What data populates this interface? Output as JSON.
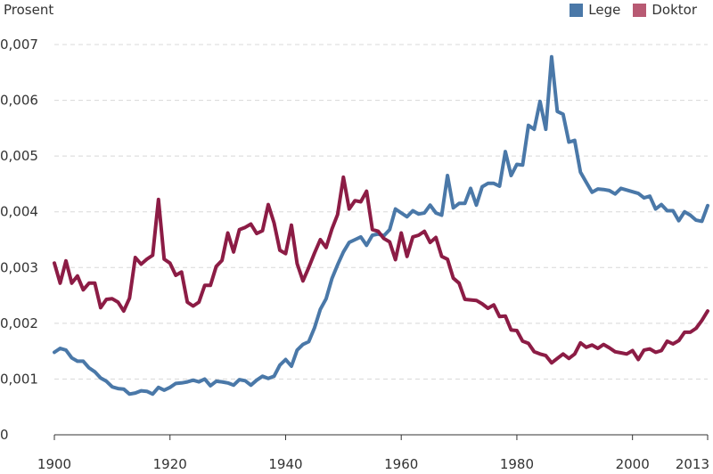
{
  "chart_data": {
    "type": "line",
    "ylabel": "Prosent",
    "xlabel": "",
    "title": "",
    "xlim": [
      1900,
      2013
    ],
    "ylim": [
      0,
      0.007
    ],
    "x_ticks": [
      1900,
      1920,
      1940,
      1960,
      1980,
      2000,
      2013
    ],
    "x_tick_labels": [
      "1900",
      "1920",
      "1940",
      "1960",
      "1980",
      "2000",
      "2013"
    ],
    "y_ticks": [
      0,
      0.001,
      0.002,
      0.003,
      0.004,
      0.005,
      0.006,
      0.007
    ],
    "y_tick_labels": [
      "0",
      "0,001",
      "0,002",
      "0,003",
      "0,004",
      "0,005",
      "0,006",
      "0,007"
    ],
    "grid": "horizontal-dashed",
    "legend_position": "top-right",
    "colors": {
      "Lege": "#4a78a8",
      "Doktor": "#8c1c45"
    },
    "series": [
      {
        "name": "Lege",
        "color": "#4a78a8",
        "points": [
          [
            1900,
            0.00148
          ],
          [
            1901,
            0.00155
          ],
          [
            1902,
            0.00152
          ],
          [
            1903,
            0.00138
          ],
          [
            1904,
            0.00132
          ],
          [
            1905,
            0.00132
          ],
          [
            1906,
            0.0012
          ],
          [
            1907,
            0.00113
          ],
          [
            1908,
            0.00102
          ],
          [
            1909,
            0.00096
          ],
          [
            1910,
            0.00086
          ],
          [
            1911,
            0.00083
          ],
          [
            1912,
            0.00082
          ],
          [
            1913,
            0.00073
          ],
          [
            1914,
            0.00075
          ],
          [
            1915,
            0.00079
          ],
          [
            1916,
            0.00078
          ],
          [
            1917,
            0.00073
          ],
          [
            1918,
            0.00085
          ],
          [
            1919,
            0.0008
          ],
          [
            1920,
            0.00085
          ],
          [
            1921,
            0.00092
          ],
          [
            1922,
            0.00093
          ],
          [
            1923,
            0.00095
          ],
          [
            1924,
            0.00098
          ],
          [
            1925,
            0.00095
          ],
          [
            1926,
            0.001
          ],
          [
            1927,
            0.00088
          ],
          [
            1928,
            0.00096
          ],
          [
            1929,
            0.00095
          ],
          [
            1930,
            0.00093
          ],
          [
            1931,
            0.00089
          ],
          [
            1932,
            0.00099
          ],
          [
            1933,
            0.00097
          ],
          [
            1934,
            0.00089
          ],
          [
            1935,
            0.00098
          ],
          [
            1936,
            0.00105
          ],
          [
            1937,
            0.00101
          ],
          [
            1938,
            0.00105
          ],
          [
            1939,
            0.00125
          ],
          [
            1940,
            0.00135
          ],
          [
            1941,
            0.00123
          ],
          [
            1942,
            0.00152
          ],
          [
            1943,
            0.00162
          ],
          [
            1944,
            0.00167
          ],
          [
            1945,
            0.00192
          ],
          [
            1946,
            0.00225
          ],
          [
            1947,
            0.00244
          ],
          [
            1948,
            0.0028
          ],
          [
            1949,
            0.00305
          ],
          [
            1950,
            0.00328
          ],
          [
            1951,
            0.00345
          ],
          [
            1952,
            0.0035
          ],
          [
            1953,
            0.00355
          ],
          [
            1954,
            0.0034
          ],
          [
            1955,
            0.00358
          ],
          [
            1956,
            0.0036
          ],
          [
            1957,
            0.00357
          ],
          [
            1958,
            0.00368
          ],
          [
            1959,
            0.00405
          ],
          [
            1960,
            0.00398
          ],
          [
            1961,
            0.00391
          ],
          [
            1962,
            0.00402
          ],
          [
            1963,
            0.00396
          ],
          [
            1964,
            0.00398
          ],
          [
            1965,
            0.00412
          ],
          [
            1966,
            0.00398
          ],
          [
            1967,
            0.00394
          ],
          [
            1968,
            0.00465
          ],
          [
            1969,
            0.00407
          ],
          [
            1970,
            0.00415
          ],
          [
            1971,
            0.00415
          ],
          [
            1972,
            0.00442
          ],
          [
            1973,
            0.00412
          ],
          [
            1974,
            0.00445
          ],
          [
            1975,
            0.00451
          ],
          [
            1976,
            0.00451
          ],
          [
            1977,
            0.00446
          ],
          [
            1978,
            0.00508
          ],
          [
            1979,
            0.00465
          ],
          [
            1980,
            0.00485
          ],
          [
            1981,
            0.00484
          ],
          [
            1982,
            0.00555
          ],
          [
            1983,
            0.00548
          ],
          [
            1984,
            0.00598
          ],
          [
            1985,
            0.00548
          ],
          [
            1986,
            0.00678
          ],
          [
            1987,
            0.0058
          ],
          [
            1988,
            0.00575
          ],
          [
            1989,
            0.00525
          ],
          [
            1990,
            0.00528
          ],
          [
            1991,
            0.00471
          ],
          [
            1992,
            0.00453
          ],
          [
            1993,
            0.00435
          ],
          [
            1994,
            0.00441
          ],
          [
            1995,
            0.0044
          ],
          [
            1996,
            0.00438
          ],
          [
            1997,
            0.00432
          ],
          [
            1998,
            0.00442
          ],
          [
            1999,
            0.00439
          ],
          [
            2000,
            0.00436
          ],
          [
            2001,
            0.00433
          ],
          [
            2002,
            0.00425
          ],
          [
            2003,
            0.00428
          ],
          [
            2004,
            0.00405
          ],
          [
            2005,
            0.00413
          ],
          [
            2006,
            0.00402
          ],
          [
            2007,
            0.00402
          ],
          [
            2008,
            0.00384
          ],
          [
            2009,
            0.004
          ],
          [
            2010,
            0.00394
          ],
          [
            2011,
            0.00385
          ],
          [
            2012,
            0.00383
          ],
          [
            2013,
            0.00411
          ]
        ]
      },
      {
        "name": "Doktor",
        "color": "#8c1c45",
        "points": [
          [
            1900,
            0.00308
          ],
          [
            1901,
            0.00272
          ],
          [
            1902,
            0.00312
          ],
          [
            1903,
            0.00272
          ],
          [
            1904,
            0.00285
          ],
          [
            1905,
            0.0026
          ],
          [
            1906,
            0.00272
          ],
          [
            1907,
            0.00272
          ],
          [
            1908,
            0.00228
          ],
          [
            1909,
            0.00243
          ],
          [
            1910,
            0.00244
          ],
          [
            1911,
            0.00238
          ],
          [
            1912,
            0.00222
          ],
          [
            1913,
            0.00245
          ],
          [
            1914,
            0.00318
          ],
          [
            1915,
            0.00306
          ],
          [
            1916,
            0.00315
          ],
          [
            1917,
            0.00322
          ],
          [
            1918,
            0.00422
          ],
          [
            1919,
            0.00315
          ],
          [
            1920,
            0.00308
          ],
          [
            1921,
            0.00286
          ],
          [
            1922,
            0.00292
          ],
          [
            1923,
            0.00238
          ],
          [
            1924,
            0.00231
          ],
          [
            1925,
            0.00238
          ],
          [
            1926,
            0.00268
          ],
          [
            1927,
            0.00268
          ],
          [
            1928,
            0.00302
          ],
          [
            1929,
            0.00313
          ],
          [
            1930,
            0.00362
          ],
          [
            1931,
            0.00328
          ],
          [
            1932,
            0.00368
          ],
          [
            1933,
            0.00372
          ],
          [
            1934,
            0.00378
          ],
          [
            1935,
            0.00361
          ],
          [
            1936,
            0.00366
          ],
          [
            1937,
            0.00413
          ],
          [
            1938,
            0.0038
          ],
          [
            1939,
            0.00331
          ],
          [
            1940,
            0.00325
          ],
          [
            1941,
            0.00376
          ],
          [
            1942,
            0.00307
          ],
          [
            1943,
            0.00276
          ],
          [
            1944,
            0.003
          ],
          [
            1945,
            0.00326
          ],
          [
            1946,
            0.0035
          ],
          [
            1947,
            0.00336
          ],
          [
            1948,
            0.00369
          ],
          [
            1949,
            0.00395
          ],
          [
            1950,
            0.00462
          ],
          [
            1951,
            0.00405
          ],
          [
            1952,
            0.0042
          ],
          [
            1953,
            0.00418
          ],
          [
            1954,
            0.00437
          ],
          [
            1955,
            0.00368
          ],
          [
            1956,
            0.00365
          ],
          [
            1957,
            0.00352
          ],
          [
            1958,
            0.00346
          ],
          [
            1959,
            0.00314
          ],
          [
            1960,
            0.00362
          ],
          [
            1961,
            0.0032
          ],
          [
            1962,
            0.00355
          ],
          [
            1963,
            0.00358
          ],
          [
            1964,
            0.00365
          ],
          [
            1965,
            0.00345
          ],
          [
            1966,
            0.00354
          ],
          [
            1967,
            0.0032
          ],
          [
            1968,
            0.00315
          ],
          [
            1969,
            0.00281
          ],
          [
            1970,
            0.00272
          ],
          [
            1971,
            0.00243
          ],
          [
            1972,
            0.00242
          ],
          [
            1973,
            0.00241
          ],
          [
            1974,
            0.00235
          ],
          [
            1975,
            0.00227
          ],
          [
            1976,
            0.00233
          ],
          [
            1977,
            0.00212
          ],
          [
            1978,
            0.00213
          ],
          [
            1979,
            0.00188
          ],
          [
            1980,
            0.00187
          ],
          [
            1981,
            0.00168
          ],
          [
            1982,
            0.00164
          ],
          [
            1983,
            0.00149
          ],
          [
            1984,
            0.00145
          ],
          [
            1985,
            0.00142
          ],
          [
            1986,
            0.00129
          ],
          [
            1987,
            0.00137
          ],
          [
            1988,
            0.00145
          ],
          [
            1989,
            0.00137
          ],
          [
            1990,
            0.00145
          ],
          [
            1991,
            0.00165
          ],
          [
            1992,
            0.00157
          ],
          [
            1993,
            0.00161
          ],
          [
            1994,
            0.00155
          ],
          [
            1995,
            0.00162
          ],
          [
            1996,
            0.00156
          ],
          [
            1997,
            0.00149
          ],
          [
            1998,
            0.00147
          ],
          [
            1999,
            0.00145
          ],
          [
            2000,
            0.00151
          ],
          [
            2001,
            0.00135
          ],
          [
            2002,
            0.00152
          ],
          [
            2003,
            0.00154
          ],
          [
            2004,
            0.00148
          ],
          [
            2005,
            0.00151
          ],
          [
            2006,
            0.00168
          ],
          [
            2007,
            0.00163
          ],
          [
            2008,
            0.00169
          ],
          [
            2009,
            0.00184
          ],
          [
            2010,
            0.00184
          ],
          [
            2011,
            0.00191
          ],
          [
            2012,
            0.00205
          ],
          [
            2013,
            0.00222
          ]
        ]
      }
    ]
  }
}
